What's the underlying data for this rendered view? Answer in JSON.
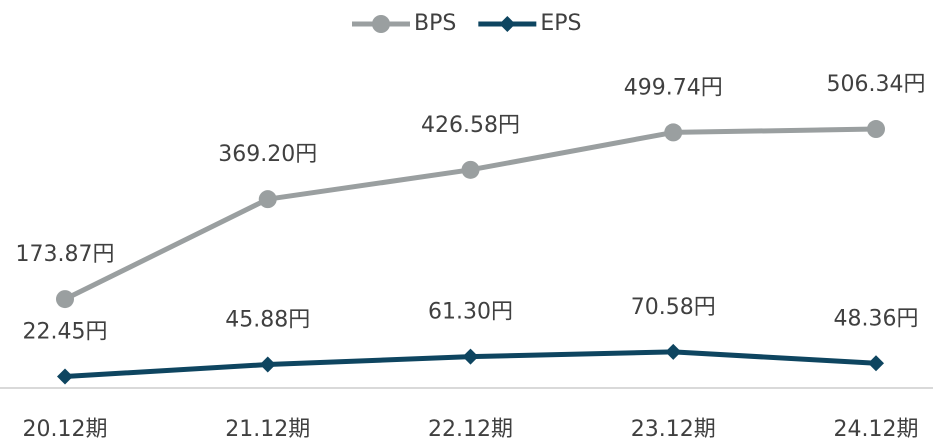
{
  "chart_data": {
    "type": "line",
    "categories": [
      "20.12期",
      "21.12期",
      "22.12期",
      "23.12期",
      "24.12期"
    ],
    "series": [
      {
        "name": "BPS",
        "color": "#9a9fa0",
        "marker": "circle",
        "values": [
          173.87,
          369.2,
          426.58,
          499.74,
          506.34
        ],
        "value_labels": [
          "173.87円",
          "369.20円",
          "426.58円",
          "499.74円",
          "506.34円"
        ]
      },
      {
        "name": "EPS",
        "color": "#0e4560",
        "marker": "diamond",
        "values": [
          22.45,
          45.88,
          61.3,
          70.58,
          48.36
        ],
        "value_labels": [
          "22.45円",
          "45.88円",
          "61.30円",
          "70.58円",
          "48.36円"
        ]
      }
    ],
    "ylim": [
      0,
      700
    ],
    "legend": "top"
  }
}
